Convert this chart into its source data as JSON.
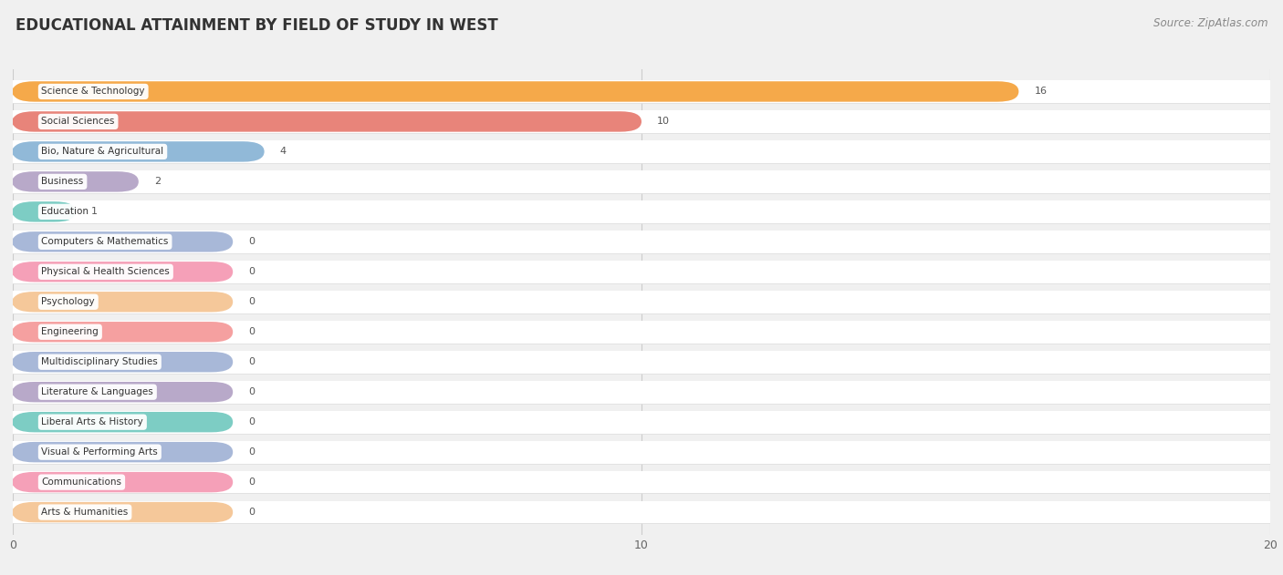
{
  "title": "EDUCATIONAL ATTAINMENT BY FIELD OF STUDY IN WEST",
  "source": "Source: ZipAtlas.com",
  "categories": [
    "Science & Technology",
    "Social Sciences",
    "Bio, Nature & Agricultural",
    "Business",
    "Education",
    "Computers & Mathematics",
    "Physical & Health Sciences",
    "Psychology",
    "Engineering",
    "Multidisciplinary Studies",
    "Literature & Languages",
    "Liberal Arts & History",
    "Visual & Performing Arts",
    "Communications",
    "Arts & Humanities"
  ],
  "values": [
    16,
    10,
    4,
    2,
    1,
    0,
    0,
    0,
    0,
    0,
    0,
    0,
    0,
    0,
    0
  ],
  "bar_colors": [
    "#F5A94A",
    "#E8847A",
    "#91B9D8",
    "#B8A9C9",
    "#7DCDC4",
    "#A8B8D8",
    "#F5A0B8",
    "#F5C89A",
    "#F5A0A0",
    "#A8B8D8",
    "#B8A9C9",
    "#7DCDC4",
    "#A8B8D8",
    "#F5A0B8",
    "#F5C89A"
  ],
  "xlim": [
    0,
    20
  ],
  "xticks": [
    0,
    10,
    20
  ],
  "background_color": "#f0f0f0",
  "row_background": "#ffffff",
  "title_fontsize": 12,
  "source_fontsize": 8.5,
  "min_bar_width": 3.5
}
